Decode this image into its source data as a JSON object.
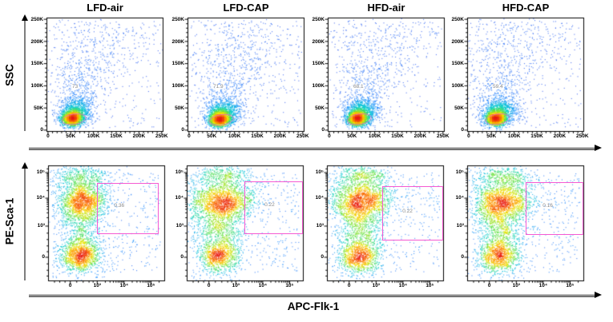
{
  "chart_data": {
    "type": "scatter",
    "subtype": "flow-cytometry-pseudocolor-density-grid",
    "description": "Flow cytometry dot plots, 2 rows x 4 columns. Top row: SSC vs forward scatter with gated percentage of events. Bottom row: PE-Sca-1 vs APC-Flk-1 with rectangular gate percentage of Sca-1+/Flk-1+ cells.",
    "columns": [
      "LFD-air",
      "LFD-CAP",
      "HFD-air",
      "HFD-CAP"
    ],
    "rows": [
      {
        "ylabel": "SSC",
        "xlabel": "",
        "xticks": [
          "0",
          "50K",
          "100K",
          "150K",
          "200K",
          "250K"
        ],
        "yticks": [
          "0",
          "50K",
          "100K",
          "150K",
          "200K",
          "250K"
        ],
        "axis_range": [
          0,
          262144
        ],
        "grid": false,
        "legend": "none",
        "gate_label_pos": {
          "x": 0.26,
          "y": 0.615
        },
        "panels": [
          {
            "title": "LFD-air",
            "gate_percent": "73",
            "core": {
              "x": 0.215,
              "y": 0.885
            },
            "fan_slope": 0.27,
            "seed": 11
          },
          {
            "title": "LFD-CAP",
            "gate_percent": "71.9",
            "core": {
              "x": 0.27,
              "y": 0.89
            },
            "fan_slope": 0.24,
            "seed": 23
          },
          {
            "title": "HFD-air",
            "gate_percent": "68.1",
            "core": {
              "x": 0.25,
              "y": 0.885
            },
            "fan_slope": 0.27,
            "seed": 37
          },
          {
            "title": "HFD-CAP",
            "gate_percent": "59.4",
            "core": {
              "x": 0.24,
              "y": 0.885
            },
            "fan_slope": 0.15,
            "seed": 51
          }
        ]
      },
      {
        "ylabel": "PE-Sca-1",
        "xlabel": "APC-Flk-1",
        "xticks": [
          "0",
          "10³",
          "10⁴",
          "10⁵"
        ],
        "yticks": [
          "0",
          "10³",
          "10⁴",
          "10⁵"
        ],
        "grid": false,
        "legend": "none",
        "panels": [
          {
            "title": "LFD-air",
            "gate_percent": "0.36",
            "gate": {
              "x0": 0.42,
              "y0": 0.155,
              "x1": 0.945,
              "y1": 0.59
            },
            "label_pos": {
              "x": 0.62,
              "y": 0.355
            },
            "band_sx": 0.1,
            "wB": 0.26,
            "wC": 0.13,
            "seed": 63
          },
          {
            "title": "LFD-CAP",
            "gate_percent": "0.22",
            "gate": {
              "x0": 0.49,
              "y0": 0.14,
              "x1": 0.995,
              "y1": 0.59
            },
            "label_pos": {
              "x": 0.72,
              "y": 0.345
            },
            "band_sx": 0.145,
            "wB": 0.18,
            "wC": 0.2,
            "seed": 77
          },
          {
            "title": "HFD-air",
            "gate_percent": "0.22",
            "gate": {
              "x0": 0.47,
              "y0": 0.18,
              "x1": 0.995,
              "y1": 0.648
            },
            "label_pos": {
              "x": 0.7,
              "y": 0.4
            },
            "band_sx": 0.13,
            "wB": 0.2,
            "wC": 0.19,
            "seed": 89
          },
          {
            "title": "HFD-CAP",
            "gate_percent": "0.16",
            "gate": {
              "x0": 0.5,
              "y0": 0.145,
              "x1": 0.995,
              "y1": 0.6
            },
            "label_pos": {
              "x": 0.7,
              "y": 0.355
            },
            "band_sx": 0.13,
            "wB": 0.19,
            "wC": 0.19,
            "seed": 95
          }
        ]
      }
    ],
    "colors": {
      "gate_pink": "#f55ad2",
      "percent_gray": "#8a8a8a",
      "axis_black": "#000000",
      "arrow_gray": "#8a8a8a",
      "density_palette_low_to_high": [
        "#4656eb",
        "#1e8cff",
        "#00cdcd",
        "#60e13c",
        "#f0e400",
        "#ff8c00",
        "#e81c18"
      ]
    }
  }
}
